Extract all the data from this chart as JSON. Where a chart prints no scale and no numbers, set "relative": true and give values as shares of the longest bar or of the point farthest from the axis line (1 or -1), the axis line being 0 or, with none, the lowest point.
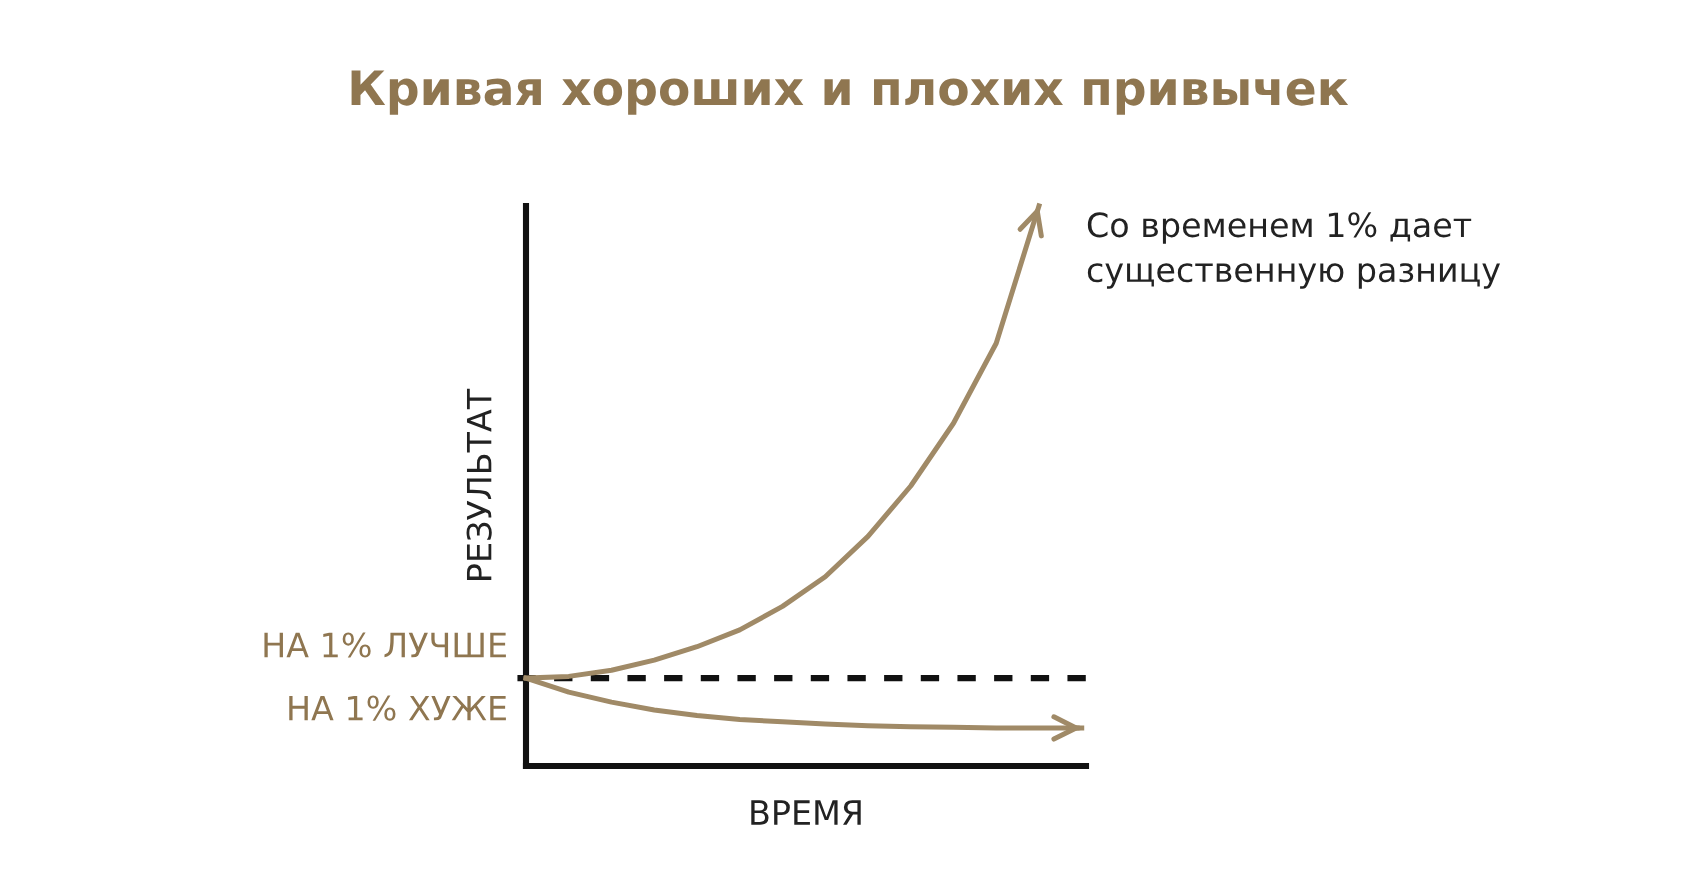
{
  "chart_data": {
    "type": "line",
    "title": "Кривая хороших и плохих привычек",
    "xlabel": "ВРЕМЯ",
    "ylabel": "РЕЗУЛЬТАТ",
    "relative": true,
    "tick_labels": false,
    "marker": "none",
    "line_style": "solid",
    "categories": [
      null,
      null,
      null,
      null,
      null,
      null,
      null,
      null,
      null,
      null,
      null,
      null,
      null,
      null
    ],
    "series": [
      {
        "color": "#a08a67",
        "values": [
          0.157,
          0.16,
          0.171,
          0.189,
          0.213,
          0.243,
          0.285,
          0.338,
          0.41,
          0.5,
          0.612,
          0.755,
          1.0,
          null
        ]
      },
      {
        "color": "#a08a67",
        "values": [
          0.157,
          0.132,
          0.114,
          0.1,
          0.09,
          0.083,
          0.079,
          0.075,
          0.072,
          0.07,
          0.069,
          0.068,
          0.068,
          0.068
        ]
      }
    ],
    "ref_lines": [
      {
        "axis": "y",
        "value": 0.157,
        "color": "#111111",
        "line_style": "dashed"
      }
    ],
    "annotations": [
      "Со временем 1% дает\nсущественную разницу",
      "НА 1% ЛУЧШЕ",
      "НА 1% ХУЖЕ"
    ]
  }
}
